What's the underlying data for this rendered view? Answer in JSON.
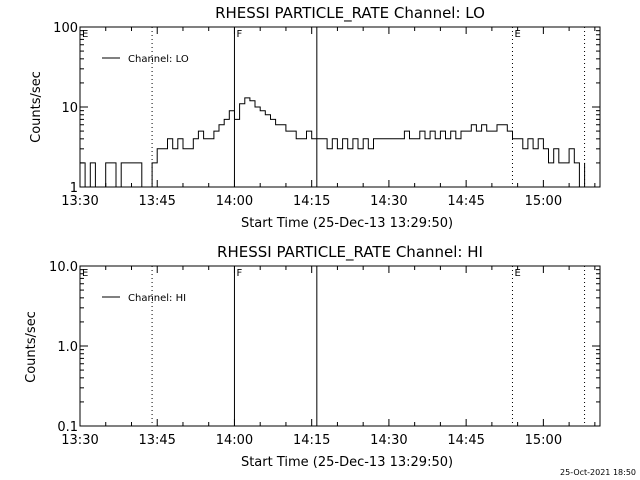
{
  "footer": {
    "timestamp": "25-Oct-2021 18:50"
  },
  "colors": {
    "background": "#ffffff",
    "foreground": "#000000"
  },
  "chart_data": [
    {
      "type": "line",
      "title": "RHESSI PARTICLE_RATE Channel: LO",
      "xlabel": "Start Time (25-Dec-13 13:29:50)",
      "ylabel": "Counts/sec",
      "yscale": "log",
      "xlim": [
        "13:30",
        "15:11"
      ],
      "ylim": [
        1,
        100
      ],
      "x_ticks": [
        "13:30",
        "13:45",
        "14:00",
        "14:15",
        "14:30",
        "14:45",
        "15:00"
      ],
      "y_ticks": [
        "1",
        "10",
        "100"
      ],
      "legend": {
        "position": "top-left",
        "entries": [
          "Channel: LO"
        ]
      },
      "markers": [
        {
          "time": "13:30",
          "label": "E",
          "style": "none"
        },
        {
          "time": "13:44",
          "label": "",
          "style": "dotted"
        },
        {
          "time": "14:00",
          "label": "F",
          "style": "solid"
        },
        {
          "time": "14:16",
          "label": "",
          "style": "solid"
        },
        {
          "time": "14:54",
          "label": "E",
          "style": "dotted"
        },
        {
          "time": "15:08",
          "label": "",
          "style": "dotted"
        }
      ],
      "series": [
        {
          "name": "Channel: LO",
          "x": [
            "13:30",
            "13:30",
            "13:31",
            "13:32",
            "13:33",
            "13:35",
            "13:36",
            "13:37",
            "13:38",
            "13:39",
            "13:40",
            "13:41",
            "13:42",
            "13:43",
            "13:43",
            "13:44",
            "13:45",
            "13:46",
            "13:47",
            "13:48",
            "13:49",
            "13:50",
            "13:51",
            "13:52",
            "13:53",
            "13:54",
            "13:55",
            "13:56",
            "13:57",
            "13:58",
            "13:59",
            "14:00",
            "14:01",
            "14:02",
            "14:03",
            "14:04",
            "14:05",
            "14:06",
            "14:07",
            "14:08",
            "14:09",
            "14:10",
            "14:11",
            "14:12",
            "14:13",
            "14:14",
            "14:15",
            "14:16",
            "14:17",
            "14:18",
            "14:19",
            "14:20",
            "14:21",
            "14:22",
            "14:23",
            "14:24",
            "14:25",
            "14:26",
            "14:27",
            "14:28",
            "14:29",
            "14:30",
            "14:31",
            "14:32",
            "14:33",
            "14:34",
            "14:35",
            "14:36",
            "14:37",
            "14:38",
            "14:39",
            "14:40",
            "14:41",
            "14:42",
            "14:43",
            "14:44",
            "14:45",
            "14:46",
            "14:47",
            "14:48",
            "14:49",
            "14:50",
            "14:51",
            "14:52",
            "14:53",
            "14:54",
            "14:55",
            "14:56",
            "14:57",
            "14:58",
            "14:59",
            "15:00",
            "15:01",
            "15:02",
            "15:03",
            "15:04",
            "15:05",
            "15:06",
            "15:07",
            "15:08"
          ],
          "values": [
            1,
            2,
            1,
            2,
            1,
            2,
            2,
            1,
            2,
            2,
            2,
            2,
            1,
            1,
            1,
            2,
            3,
            3,
            4,
            3,
            4,
            3,
            3,
            4,
            5,
            4,
            4,
            5,
            6,
            7,
            9,
            7,
            11,
            13,
            12,
            10,
            9,
            8,
            7,
            6,
            6,
            5,
            5,
            4,
            4,
            5,
            4,
            4,
            4,
            3,
            4,
            3,
            4,
            3,
            4,
            3,
            4,
            3,
            4,
            4,
            4,
            4,
            4,
            4,
            5,
            4,
            4,
            5,
            4,
            5,
            4,
            5,
            4,
            5,
            4,
            5,
            5,
            6,
            5,
            6,
            5,
            5,
            6,
            6,
            5,
            4,
            4,
            3,
            4,
            3,
            4,
            3,
            2,
            3,
            2,
            2,
            3,
            2,
            1,
            2
          ]
        }
      ]
    },
    {
      "type": "line",
      "title": "RHESSI PARTICLE_RATE Channel: HI",
      "xlabel": "Start Time (25-Dec-13 13:29:50)",
      "ylabel": "Counts/sec",
      "yscale": "log",
      "xlim": [
        "13:30",
        "15:11"
      ],
      "ylim": [
        0.1,
        10
      ],
      "x_ticks": [
        "13:30",
        "13:45",
        "14:00",
        "14:15",
        "14:30",
        "14:45",
        "15:00"
      ],
      "y_ticks": [
        "0.1",
        "1.0",
        "10.0"
      ],
      "legend": {
        "position": "top-left",
        "entries": [
          "Channel: HI"
        ]
      },
      "markers": [
        {
          "time": "13:30",
          "label": "E",
          "style": "none"
        },
        {
          "time": "13:44",
          "label": "",
          "style": "dotted"
        },
        {
          "time": "14:00",
          "label": "F",
          "style": "solid"
        },
        {
          "time": "14:16",
          "label": "",
          "style": "solid"
        },
        {
          "time": "14:54",
          "label": "E",
          "style": "dotted"
        },
        {
          "time": "15:08",
          "label": "",
          "style": "dotted"
        }
      ],
      "series": [
        {
          "name": "Channel: HI",
          "x": [],
          "values": []
        }
      ]
    }
  ]
}
